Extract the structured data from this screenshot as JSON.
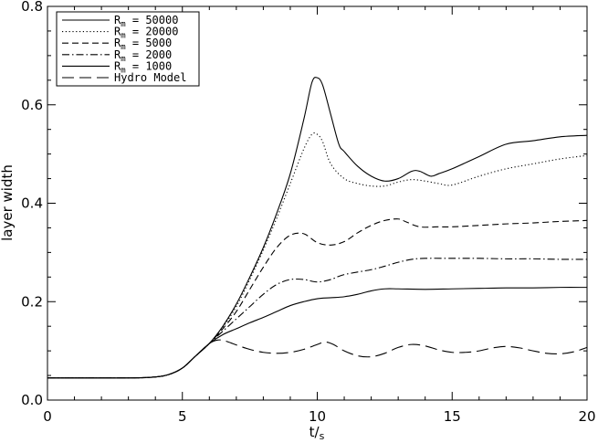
{
  "chart_data": {
    "type": "line",
    "title": "",
    "xlabel": "t/s",
    "ylabel": "layer width",
    "xlim": [
      0,
      20
    ],
    "ylim": [
      0,
      0.8
    ],
    "xticks": [
      "0",
      "5",
      "10",
      "15",
      "20"
    ],
    "yticks": [
      "0.0",
      "0.2",
      "0.4",
      "0.6",
      "0.8"
    ],
    "grid": false,
    "legend_position": "top-left",
    "series": [
      {
        "name": "Rm = 50000",
        "label_main": "R",
        "label_sub": "m",
        "label_rest": " = 50000",
        "style": "solid",
        "points": [
          [
            0,
            0.045
          ],
          [
            3,
            0.045
          ],
          [
            4,
            0.047
          ],
          [
            4.5,
            0.052
          ],
          [
            5,
            0.065
          ],
          [
            5.5,
            0.09
          ],
          [
            6,
            0.115
          ],
          [
            6.5,
            0.15
          ],
          [
            7,
            0.195
          ],
          [
            7.5,
            0.25
          ],
          [
            8,
            0.31
          ],
          [
            8.5,
            0.38
          ],
          [
            9,
            0.46
          ],
          [
            9.5,
            0.57
          ],
          [
            9.8,
            0.645
          ],
          [
            10,
            0.655
          ],
          [
            10.2,
            0.64
          ],
          [
            10.5,
            0.58
          ],
          [
            10.8,
            0.52
          ],
          [
            11,
            0.505
          ],
          [
            11.5,
            0.475
          ],
          [
            12,
            0.455
          ],
          [
            12.5,
            0.445
          ],
          [
            13,
            0.45
          ],
          [
            13.5,
            0.465
          ],
          [
            13.8,
            0.465
          ],
          [
            14.2,
            0.455
          ],
          [
            14.5,
            0.46
          ],
          [
            15,
            0.47
          ],
          [
            16,
            0.495
          ],
          [
            17,
            0.52
          ],
          [
            18,
            0.527
          ],
          [
            19,
            0.535
          ],
          [
            20,
            0.538
          ]
        ]
      },
      {
        "name": "Rm = 20000",
        "label_main": "R",
        "label_sub": "m",
        "label_rest": " = 20000",
        "style": "dotted",
        "points": [
          [
            0,
            0.045
          ],
          [
            3,
            0.045
          ],
          [
            4,
            0.047
          ],
          [
            4.5,
            0.052
          ],
          [
            5,
            0.065
          ],
          [
            5.5,
            0.09
          ],
          [
            6,
            0.115
          ],
          [
            6.5,
            0.148
          ],
          [
            7,
            0.19
          ],
          [
            7.5,
            0.245
          ],
          [
            8,
            0.305
          ],
          [
            8.5,
            0.37
          ],
          [
            9,
            0.44
          ],
          [
            9.5,
            0.51
          ],
          [
            9.8,
            0.54
          ],
          [
            10,
            0.54
          ],
          [
            10.2,
            0.525
          ],
          [
            10.5,
            0.48
          ],
          [
            11,
            0.45
          ],
          [
            11.5,
            0.44
          ],
          [
            12,
            0.435
          ],
          [
            12.5,
            0.435
          ],
          [
            13,
            0.443
          ],
          [
            13.5,
            0.448
          ],
          [
            14,
            0.445
          ],
          [
            14.5,
            0.44
          ],
          [
            15,
            0.437
          ],
          [
            16,
            0.455
          ],
          [
            17,
            0.47
          ],
          [
            18,
            0.48
          ],
          [
            19,
            0.49
          ],
          [
            20,
            0.497
          ]
        ]
      },
      {
        "name": "Rm = 5000",
        "label_main": "R",
        "label_sub": "m",
        "label_rest": " = 5000",
        "style": "dashed",
        "points": [
          [
            0,
            0.045
          ],
          [
            3,
            0.045
          ],
          [
            4,
            0.047
          ],
          [
            4.5,
            0.052
          ],
          [
            5,
            0.065
          ],
          [
            5.5,
            0.09
          ],
          [
            6,
            0.115
          ],
          [
            6.5,
            0.145
          ],
          [
            7,
            0.18
          ],
          [
            7.5,
            0.225
          ],
          [
            8,
            0.27
          ],
          [
            8.5,
            0.31
          ],
          [
            9,
            0.335
          ],
          [
            9.5,
            0.338
          ],
          [
            10,
            0.32
          ],
          [
            10.5,
            0.315
          ],
          [
            11,
            0.322
          ],
          [
            11.5,
            0.34
          ],
          [
            12,
            0.355
          ],
          [
            12.5,
            0.365
          ],
          [
            13,
            0.368
          ],
          [
            13.3,
            0.362
          ],
          [
            13.8,
            0.352
          ],
          [
            14.5,
            0.352
          ],
          [
            15,
            0.352
          ],
          [
            16,
            0.355
          ],
          [
            17,
            0.358
          ],
          [
            18,
            0.36
          ],
          [
            19,
            0.363
          ],
          [
            20,
            0.365
          ]
        ]
      },
      {
        "name": "Rm = 2000",
        "label_main": "R",
        "label_sub": "m",
        "label_rest": " = 2000",
        "style": "dashdot",
        "points": [
          [
            0,
            0.045
          ],
          [
            3,
            0.045
          ],
          [
            4,
            0.047
          ],
          [
            4.5,
            0.052
          ],
          [
            5,
            0.065
          ],
          [
            5.5,
            0.09
          ],
          [
            6,
            0.115
          ],
          [
            6.5,
            0.14
          ],
          [
            7,
            0.165
          ],
          [
            7.5,
            0.19
          ],
          [
            8,
            0.215
          ],
          [
            8.5,
            0.235
          ],
          [
            9,
            0.245
          ],
          [
            9.5,
            0.245
          ],
          [
            10,
            0.24
          ],
          [
            10.5,
            0.245
          ],
          [
            11,
            0.255
          ],
          [
            12,
            0.265
          ],
          [
            12.5,
            0.272
          ],
          [
            13,
            0.28
          ],
          [
            13.5,
            0.286
          ],
          [
            14,
            0.288
          ],
          [
            15,
            0.288
          ],
          [
            16,
            0.288
          ],
          [
            17,
            0.287
          ],
          [
            18,
            0.287
          ],
          [
            19,
            0.286
          ],
          [
            20,
            0.286
          ]
        ]
      },
      {
        "name": "Rm = 1000",
        "label_main": "R",
        "label_sub": "m",
        "label_rest": " = 1000",
        "style": "solid",
        "points": [
          [
            0,
            0.045
          ],
          [
            3,
            0.045
          ],
          [
            4,
            0.047
          ],
          [
            4.5,
            0.052
          ],
          [
            5,
            0.065
          ],
          [
            5.5,
            0.09
          ],
          [
            6,
            0.115
          ],
          [
            6.5,
            0.133
          ],
          [
            7,
            0.145
          ],
          [
            7.5,
            0.157
          ],
          [
            8,
            0.168
          ],
          [
            8.5,
            0.18
          ],
          [
            9,
            0.192
          ],
          [
            9.5,
            0.2
          ],
          [
            10,
            0.206
          ],
          [
            10.5,
            0.208
          ],
          [
            11,
            0.21
          ],
          [
            11.5,
            0.215
          ],
          [
            12,
            0.222
          ],
          [
            12.5,
            0.226
          ],
          [
            13,
            0.226
          ],
          [
            14,
            0.225
          ],
          [
            15,
            0.226
          ],
          [
            16,
            0.227
          ],
          [
            17,
            0.228
          ],
          [
            18,
            0.228
          ],
          [
            19,
            0.229
          ],
          [
            20,
            0.229
          ]
        ]
      },
      {
        "name": "Hydro Model",
        "label_main": "Hydro Model",
        "label_sub": "",
        "label_rest": "",
        "style": "longdash",
        "points": [
          [
            0,
            0.045
          ],
          [
            3,
            0.045
          ],
          [
            4,
            0.047
          ],
          [
            4.5,
            0.052
          ],
          [
            5,
            0.065
          ],
          [
            5.5,
            0.09
          ],
          [
            6,
            0.115
          ],
          [
            6.3,
            0.122
          ],
          [
            6.6,
            0.12
          ],
          [
            7,
            0.112
          ],
          [
            7.5,
            0.103
          ],
          [
            8,
            0.097
          ],
          [
            8.5,
            0.095
          ],
          [
            9,
            0.097
          ],
          [
            9.5,
            0.103
          ],
          [
            10,
            0.113
          ],
          [
            10.3,
            0.118
          ],
          [
            10.6,
            0.113
          ],
          [
            11,
            0.1
          ],
          [
            11.5,
            0.09
          ],
          [
            12,
            0.088
          ],
          [
            12.5,
            0.095
          ],
          [
            13,
            0.107
          ],
          [
            13.5,
            0.113
          ],
          [
            14,
            0.11
          ],
          [
            14.5,
            0.102
          ],
          [
            15,
            0.097
          ],
          [
            15.5,
            0.097
          ],
          [
            16,
            0.1
          ],
          [
            16.5,
            0.106
          ],
          [
            17,
            0.109
          ],
          [
            17.5,
            0.106
          ],
          [
            18,
            0.1
          ],
          [
            18.5,
            0.095
          ],
          [
            19,
            0.094
          ],
          [
            19.5,
            0.098
          ],
          [
            20,
            0.107
          ]
        ]
      }
    ]
  }
}
